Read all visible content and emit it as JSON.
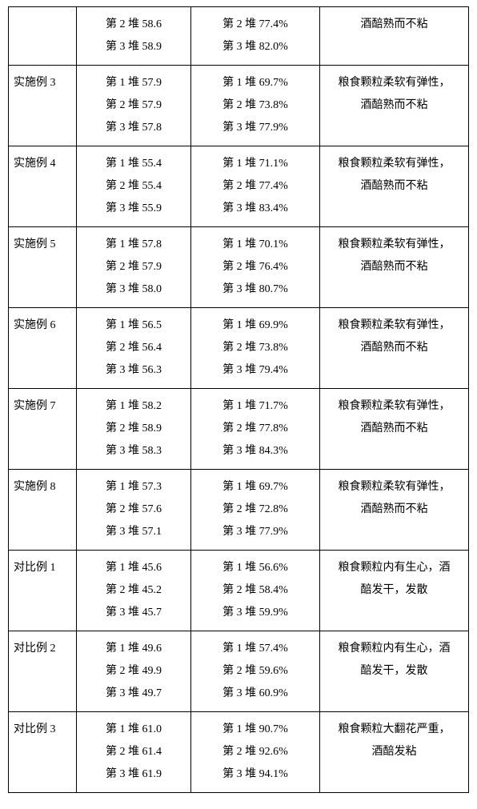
{
  "rows": [
    {
      "label": "",
      "col2": [
        "第 2 堆 58.6",
        "第 3 堆 58.9"
      ],
      "col3": [
        "第 2 堆 77.4%",
        "第 3 堆 82.0%"
      ],
      "col4": [
        "酒醅熟而不粘"
      ]
    },
    {
      "label": "实施例 3",
      "col2": [
        "第 1 堆 57.9",
        "第 2 堆 57.9",
        "第 3 堆 57.8"
      ],
      "col3": [
        "第 1 堆 69.7%",
        "第 2 堆 73.8%",
        "第 3 堆 77.9%"
      ],
      "col4": [
        "粮食颗粒柔软有弹性，",
        "酒醅熟而不粘"
      ]
    },
    {
      "label": "实施例 4",
      "col2": [
        "第 1 堆 55.4",
        "第 2 堆 55.4",
        "第 3 堆 55.9"
      ],
      "col3": [
        "第 1 堆 71.1%",
        "第 2 堆 77.4%",
        "第 3 堆 83.4%"
      ],
      "col4": [
        "粮食颗粒柔软有弹性，",
        "酒醅熟而不粘"
      ]
    },
    {
      "label": "实施例 5",
      "col2": [
        "第 1 堆 57.8",
        "第 2 堆 57.9",
        "第 3 堆 58.0"
      ],
      "col3": [
        "第 1 堆 70.1%",
        "第 2 堆 76.4%",
        "第 3 堆 80.7%"
      ],
      "col4": [
        "粮食颗粒柔软有弹性，",
        "酒醅熟而不粘"
      ]
    },
    {
      "label": "实施例 6",
      "col2": [
        "第 1 堆 56.5",
        "第 2 堆 56.4",
        "第 3 堆 56.3"
      ],
      "col3": [
        "第 1 堆 69.9%",
        "第 2 堆 73.8%",
        "第 3 堆 79.4%"
      ],
      "col4": [
        "粮食颗粒柔软有弹性，",
        "酒醅熟而不粘"
      ]
    },
    {
      "label": "实施例 7",
      "col2": [
        "第 1 堆 58.2",
        "第 2 堆 58.9",
        "第 3 堆 58.3"
      ],
      "col3": [
        "第 1 堆 71.7%",
        "第 2 堆 77.8%",
        "第 3 堆 84.3%"
      ],
      "col4": [
        "粮食颗粒柔软有弹性，",
        "酒醅熟而不粘"
      ]
    },
    {
      "label": "实施例 8",
      "col2": [
        "第 1 堆 57.3",
        "第 2 堆 57.6",
        "第 3 堆 57.1"
      ],
      "col3": [
        "第 1 堆 69.7%",
        "第 2 堆 72.8%",
        "第 3 堆 77.9%"
      ],
      "col4": [
        "粮食颗粒柔软有弹性，",
        "酒醅熟而不粘"
      ]
    },
    {
      "label": "对比例 1",
      "col2": [
        "第 1 堆 45.6",
        "第 2 堆 45.2",
        "第 3 堆 45.7"
      ],
      "col3": [
        "第 1 堆 56.6%",
        "第 2 堆 58.4%",
        "第 3 堆 59.9%"
      ],
      "col4": [
        "粮食颗粒内有生心，酒",
        "醅发干，发散"
      ]
    },
    {
      "label": "对比例 2",
      "col2": [
        "第 1 堆 49.6",
        "第 2 堆 49.9",
        "第 3 堆 49.7"
      ],
      "col3": [
        "第 1 堆 57.4%",
        "第 2 堆 59.6%",
        "第 3 堆 60.9%"
      ],
      "col4": [
        "粮食颗粒内有生心，酒",
        "醅发干，发散"
      ]
    },
    {
      "label": "对比例 3",
      "col2": [
        "第 1 堆 61.0",
        "第 2 堆 61.4",
        "第 3 堆 61.9"
      ],
      "col3": [
        "第 1 堆 90.7%",
        "第 2 堆 92.6%",
        "第 3 堆 94.1%"
      ],
      "col4": [
        "粮食颗粒大翻花严重，",
        "酒醅发粘"
      ]
    }
  ]
}
